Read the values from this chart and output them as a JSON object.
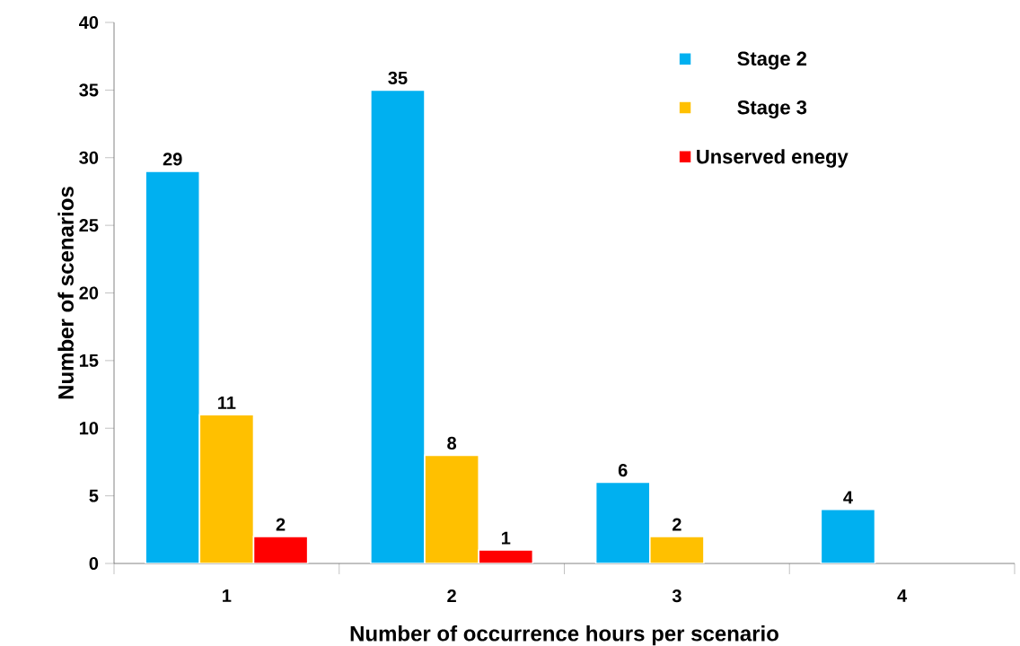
{
  "chart_data": {
    "type": "bar",
    "xlabel": "Number of occurrence hours per scenario",
    "ylabel": "Number of scenarios",
    "categories": [
      "1",
      "2",
      "3",
      "4"
    ],
    "series": [
      {
        "name": "Stage 2",
        "color": "#00b0f0",
        "values": [
          29,
          35,
          6,
          4
        ]
      },
      {
        "name": "Stage 3",
        "color": "#ffc000",
        "values": [
          11,
          8,
          2,
          null
        ]
      },
      {
        "name": "Unserved enegy",
        "color": "#ff0000",
        "values": [
          2,
          1,
          null,
          null
        ]
      }
    ],
    "ylim": [
      0,
      40
    ],
    "yticks": [
      0,
      5,
      10,
      15,
      20,
      25,
      30,
      35,
      40
    ],
    "data_labels": true,
    "legend": "top right",
    "grid": false
  }
}
